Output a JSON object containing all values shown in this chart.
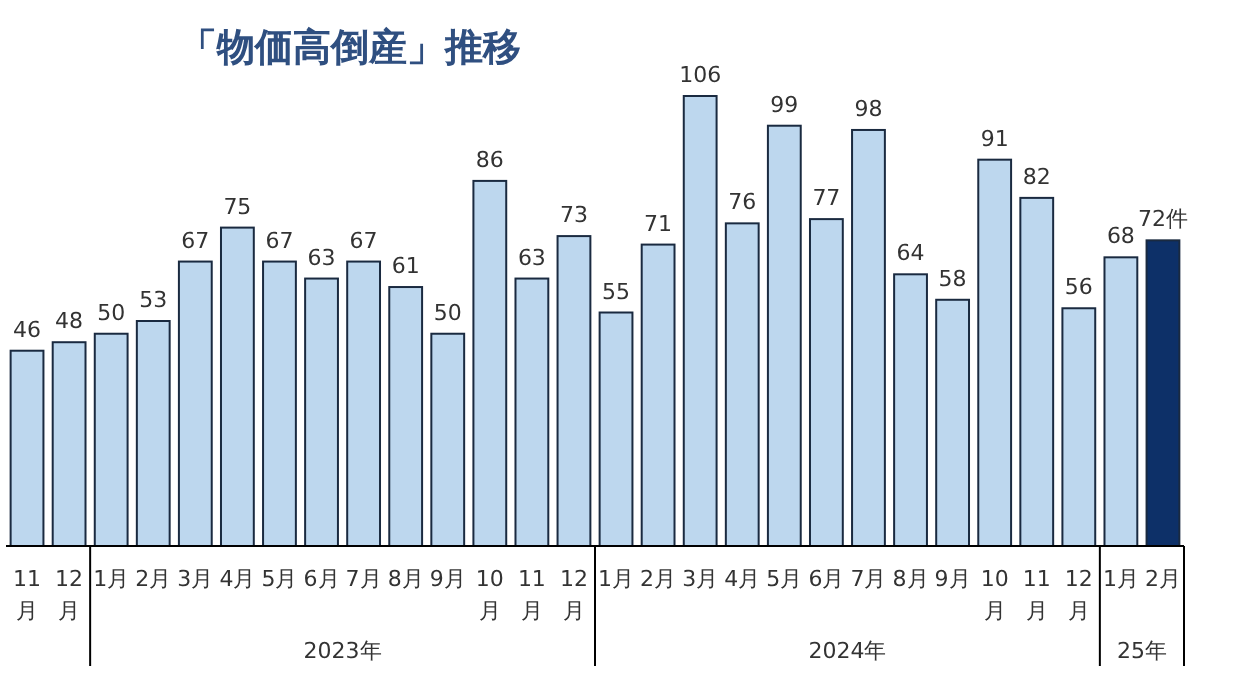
{
  "chart_data": {
    "type": "bar",
    "title": "「物価高倒産」推移",
    "x": [
      "2022-11",
      "2022-12",
      "2023-01",
      "2023-02",
      "2023-03",
      "2023-04",
      "2023-05",
      "2023-06",
      "2023-07",
      "2023-08",
      "2023-09",
      "2023-10",
      "2023-11",
      "2023-12",
      "2024-01",
      "2024-02",
      "2024-03",
      "2024-04",
      "2024-05",
      "2024-06",
      "2024-07",
      "2024-08",
      "2024-09",
      "2024-10",
      "2024-11",
      "2024-12",
      "2025-01",
      "2025-02"
    ],
    "xticks": [
      {
        "value": "2022-11",
        "label": "11月"
      },
      {
        "value": "2022-12",
        "label": "12月"
      },
      {
        "value": "2023-01",
        "label": "1月"
      },
      {
        "value": "2023-02",
        "label": "2月"
      },
      {
        "value": "2023-03",
        "label": "3月"
      },
      {
        "value": "2023-04",
        "label": "4月"
      },
      {
        "value": "2023-05",
        "label": "5月"
      },
      {
        "value": "2023-06",
        "label": "6月"
      },
      {
        "value": "2023-07",
        "label": "7月"
      },
      {
        "value": "2023-08",
        "label": "8月"
      },
      {
        "value": "2023-09",
        "label": "9月"
      },
      {
        "value": "2023-10",
        "label": "10月"
      },
      {
        "value": "2023-11",
        "label": "11月"
      },
      {
        "value": "2023-12",
        "label": "12月"
      },
      {
        "value": "2024-01",
        "label": "1月"
      },
      {
        "value": "2024-02",
        "label": "2月"
      },
      {
        "value": "2024-03",
        "label": "3月"
      },
      {
        "value": "2024-04",
        "label": "4月"
      },
      {
        "value": "2024-05",
        "label": "5月"
      },
      {
        "value": "2024-06",
        "label": "6月"
      },
      {
        "value": "2024-07",
        "label": "7月"
      },
      {
        "value": "2024-08",
        "label": "8月"
      },
      {
        "value": "2024-09",
        "label": "9月"
      },
      {
        "value": "2024-10",
        "label": "10月"
      },
      {
        "value": "2024-11",
        "label": "11月"
      },
      {
        "value": "2024-12",
        "label": "12月"
      },
      {
        "value": "2025-01",
        "label": "1月"
      },
      {
        "value": "2025-02",
        "label": "2月"
      }
    ],
    "values": [
      46,
      48,
      50,
      53,
      67,
      75,
      67,
      63,
      67,
      61,
      50,
      86,
      63,
      73,
      55,
      71,
      106,
      76,
      99,
      77,
      98,
      64,
      58,
      91,
      82,
      56,
      68,
      72
    ],
    "value_labels": [
      "46",
      "48",
      "50",
      "53",
      "67",
      "75",
      "67",
      "63",
      "67",
      "61",
      "50",
      "86",
      "63",
      "73",
      "55",
      "71",
      "106",
      "76",
      "99",
      "77",
      "98",
      "64",
      "58",
      "91",
      "82",
      "56",
      "68",
      "72件"
    ],
    "colors": [
      "#bdd7ee",
      "#bdd7ee",
      "#bdd7ee",
      "#bdd7ee",
      "#bdd7ee",
      "#bdd7ee",
      "#bdd7ee",
      "#bdd7ee",
      "#bdd7ee",
      "#bdd7ee",
      "#bdd7ee",
      "#bdd7ee",
      "#bdd7ee",
      "#bdd7ee",
      "#bdd7ee",
      "#bdd7ee",
      "#bdd7ee",
      "#bdd7ee",
      "#bdd7ee",
      "#bdd7ee",
      "#bdd7ee",
      "#bdd7ee",
      "#bdd7ee",
      "#bdd7ee",
      "#bdd7ee",
      "#bdd7ee",
      "#bdd7ee",
      "#0d3068"
    ],
    "xlim": [
      "2022-10-16",
      "2025-02-16"
    ],
    "annotations": [
      "2023年",
      "2024年",
      "25年"
    ]
  }
}
